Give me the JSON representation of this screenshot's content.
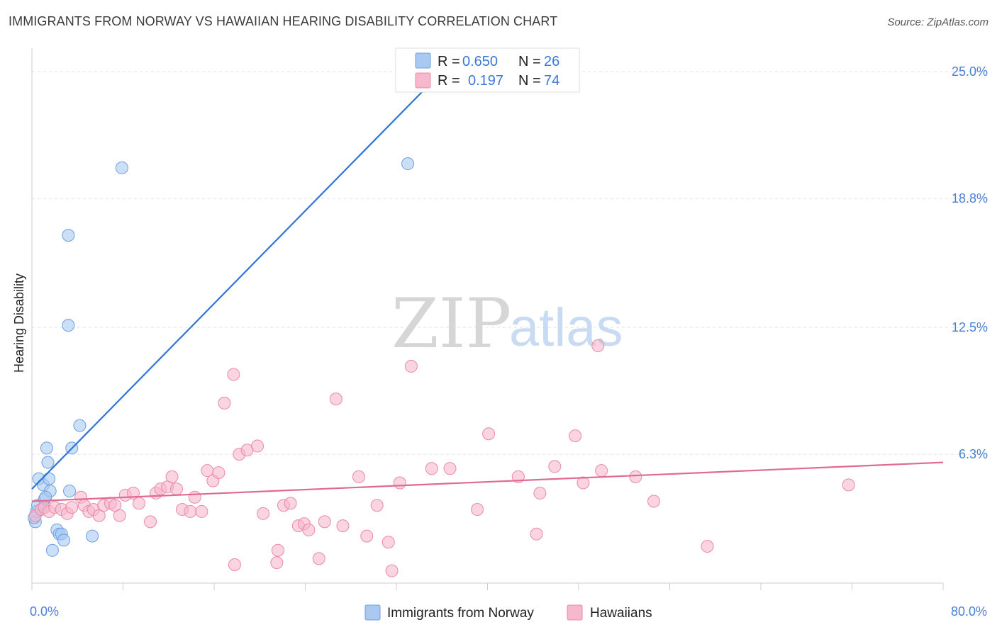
{
  "title": "IMMIGRANTS FROM NORWAY VS HAWAIIAN HEARING DISABILITY CORRELATION CHART",
  "source": "Source: ZipAtlas.com",
  "watermark": {
    "zip": "ZIP",
    "atlas": "atlas"
  },
  "legend": {
    "r_label": "R =",
    "n_label": "N =",
    "rows": [
      {
        "r": "0.650",
        "n": "26",
        "color": "#a9c9f2"
      },
      {
        "r": "0.197",
        "n": "74",
        "color": "#f6b8cc"
      }
    ]
  },
  "bottom_legend": [
    "Immigrants from Norway",
    "Hawaiians"
  ],
  "chart_data": {
    "type": "scatter",
    "title": "IMMIGRANTS FROM NORWAY VS HAWAIIAN HEARING DISABILITY CORRELATION CHART",
    "xlabel": "",
    "ylabel": "Hearing Disability",
    "xlim": [
      0,
      80
    ],
    "ylim": [
      0,
      25.8
    ],
    "x_tick_labels": [
      {
        "value": 0,
        "label": "0.0%"
      },
      {
        "value": 80,
        "label": "80.0%"
      }
    ],
    "y_tick_labels": [
      {
        "value": 6.3,
        "label": "6.3%"
      },
      {
        "value": 12.5,
        "label": "12.5%"
      },
      {
        "value": 18.8,
        "label": "18.8%"
      },
      {
        "value": 25.0,
        "label": "25.0%"
      }
    ],
    "grid": true,
    "series": [
      {
        "name": "Immigrants from Norway",
        "color": "#a9c9f2",
        "stroke": "#6d9fe0",
        "line_color": "#2f75d6",
        "trend": {
          "x": [
            0,
            36
          ],
          "y": [
            4.6,
            25.0
          ]
        },
        "points": [
          [
            0.3,
            3.0
          ],
          [
            0.4,
            3.5
          ],
          [
            0.5,
            3.8
          ],
          [
            0.6,
            5.1
          ],
          [
            0.8,
            3.6
          ],
          [
            1.0,
            4.8
          ],
          [
            1.1,
            4.1
          ],
          [
            1.3,
            6.6
          ],
          [
            1.4,
            5.9
          ],
          [
            1.5,
            5.1
          ],
          [
            1.6,
            4.5
          ],
          [
            1.8,
            1.6
          ],
          [
            2.2,
            2.6
          ],
          [
            2.4,
            2.4
          ],
          [
            2.6,
            2.4
          ],
          [
            2.8,
            2.1
          ],
          [
            3.2,
            17.0
          ],
          [
            3.3,
            4.5
          ],
          [
            3.5,
            6.6
          ],
          [
            4.2,
            7.7
          ],
          [
            5.3,
            2.3
          ],
          [
            7.9,
            20.3
          ],
          [
            33.0,
            20.5
          ],
          [
            3.2,
            12.6
          ],
          [
            1.2,
            4.2
          ],
          [
            0.2,
            3.2
          ]
        ]
      },
      {
        "name": "Hawaiians",
        "color": "#f6b8cc",
        "stroke": "#e98aa9",
        "line_color": "#e06a94",
        "trend": {
          "x": [
            0,
            80
          ],
          "y": [
            4.0,
            5.9
          ]
        },
        "points": [
          [
            0.3,
            3.3
          ],
          [
            0.8,
            3.6
          ],
          [
            1.1,
            3.7
          ],
          [
            1.5,
            3.5
          ],
          [
            2.0,
            3.7
          ],
          [
            2.6,
            3.6
          ],
          [
            3.1,
            3.4
          ],
          [
            3.5,
            3.7
          ],
          [
            4.3,
            4.2
          ],
          [
            4.6,
            3.8
          ],
          [
            5.0,
            3.5
          ],
          [
            5.4,
            3.6
          ],
          [
            5.9,
            3.3
          ],
          [
            6.3,
            3.8
          ],
          [
            6.9,
            3.9
          ],
          [
            7.3,
            3.8
          ],
          [
            7.7,
            3.3
          ],
          [
            8.2,
            4.3
          ],
          [
            8.9,
            4.4
          ],
          [
            9.4,
            3.9
          ],
          [
            10.4,
            3.0
          ],
          [
            10.9,
            4.4
          ],
          [
            11.3,
            4.6
          ],
          [
            11.9,
            4.7
          ],
          [
            12.3,
            5.2
          ],
          [
            12.7,
            4.6
          ],
          [
            13.2,
            3.6
          ],
          [
            13.9,
            3.5
          ],
          [
            14.3,
            4.2
          ],
          [
            14.9,
            3.5
          ],
          [
            15.4,
            5.5
          ],
          [
            15.9,
            5.0
          ],
          [
            16.4,
            5.4
          ],
          [
            16.9,
            8.8
          ],
          [
            17.7,
            10.2
          ],
          [
            17.8,
            0.9
          ],
          [
            18.2,
            6.3
          ],
          [
            18.9,
            6.5
          ],
          [
            19.8,
            6.7
          ],
          [
            20.3,
            3.4
          ],
          [
            21.5,
            1.0
          ],
          [
            21.6,
            1.6
          ],
          [
            22.1,
            3.8
          ],
          [
            22.7,
            3.9
          ],
          [
            23.4,
            2.8
          ],
          [
            23.9,
            2.9
          ],
          [
            24.3,
            2.6
          ],
          [
            25.2,
            1.2
          ],
          [
            25.7,
            3.0
          ],
          [
            26.7,
            9.0
          ],
          [
            27.3,
            2.8
          ],
          [
            28.7,
            5.2
          ],
          [
            29.4,
            2.3
          ],
          [
            30.3,
            3.8
          ],
          [
            31.3,
            2.0
          ],
          [
            31.6,
            0.6
          ],
          [
            32.3,
            4.9
          ],
          [
            33.3,
            10.6
          ],
          [
            35.1,
            5.6
          ],
          [
            36.7,
            5.6
          ],
          [
            39.1,
            3.6
          ],
          [
            40.1,
            7.3
          ],
          [
            42.7,
            5.2
          ],
          [
            44.3,
            2.4
          ],
          [
            44.6,
            4.4
          ],
          [
            45.9,
            5.7
          ],
          [
            47.7,
            7.2
          ],
          [
            48.4,
            4.9
          ],
          [
            49.7,
            11.6
          ],
          [
            50.0,
            5.5
          ],
          [
            53.0,
            5.2
          ],
          [
            54.6,
            4.0
          ],
          [
            59.3,
            1.8
          ],
          [
            71.7,
            4.8
          ]
        ]
      }
    ]
  }
}
